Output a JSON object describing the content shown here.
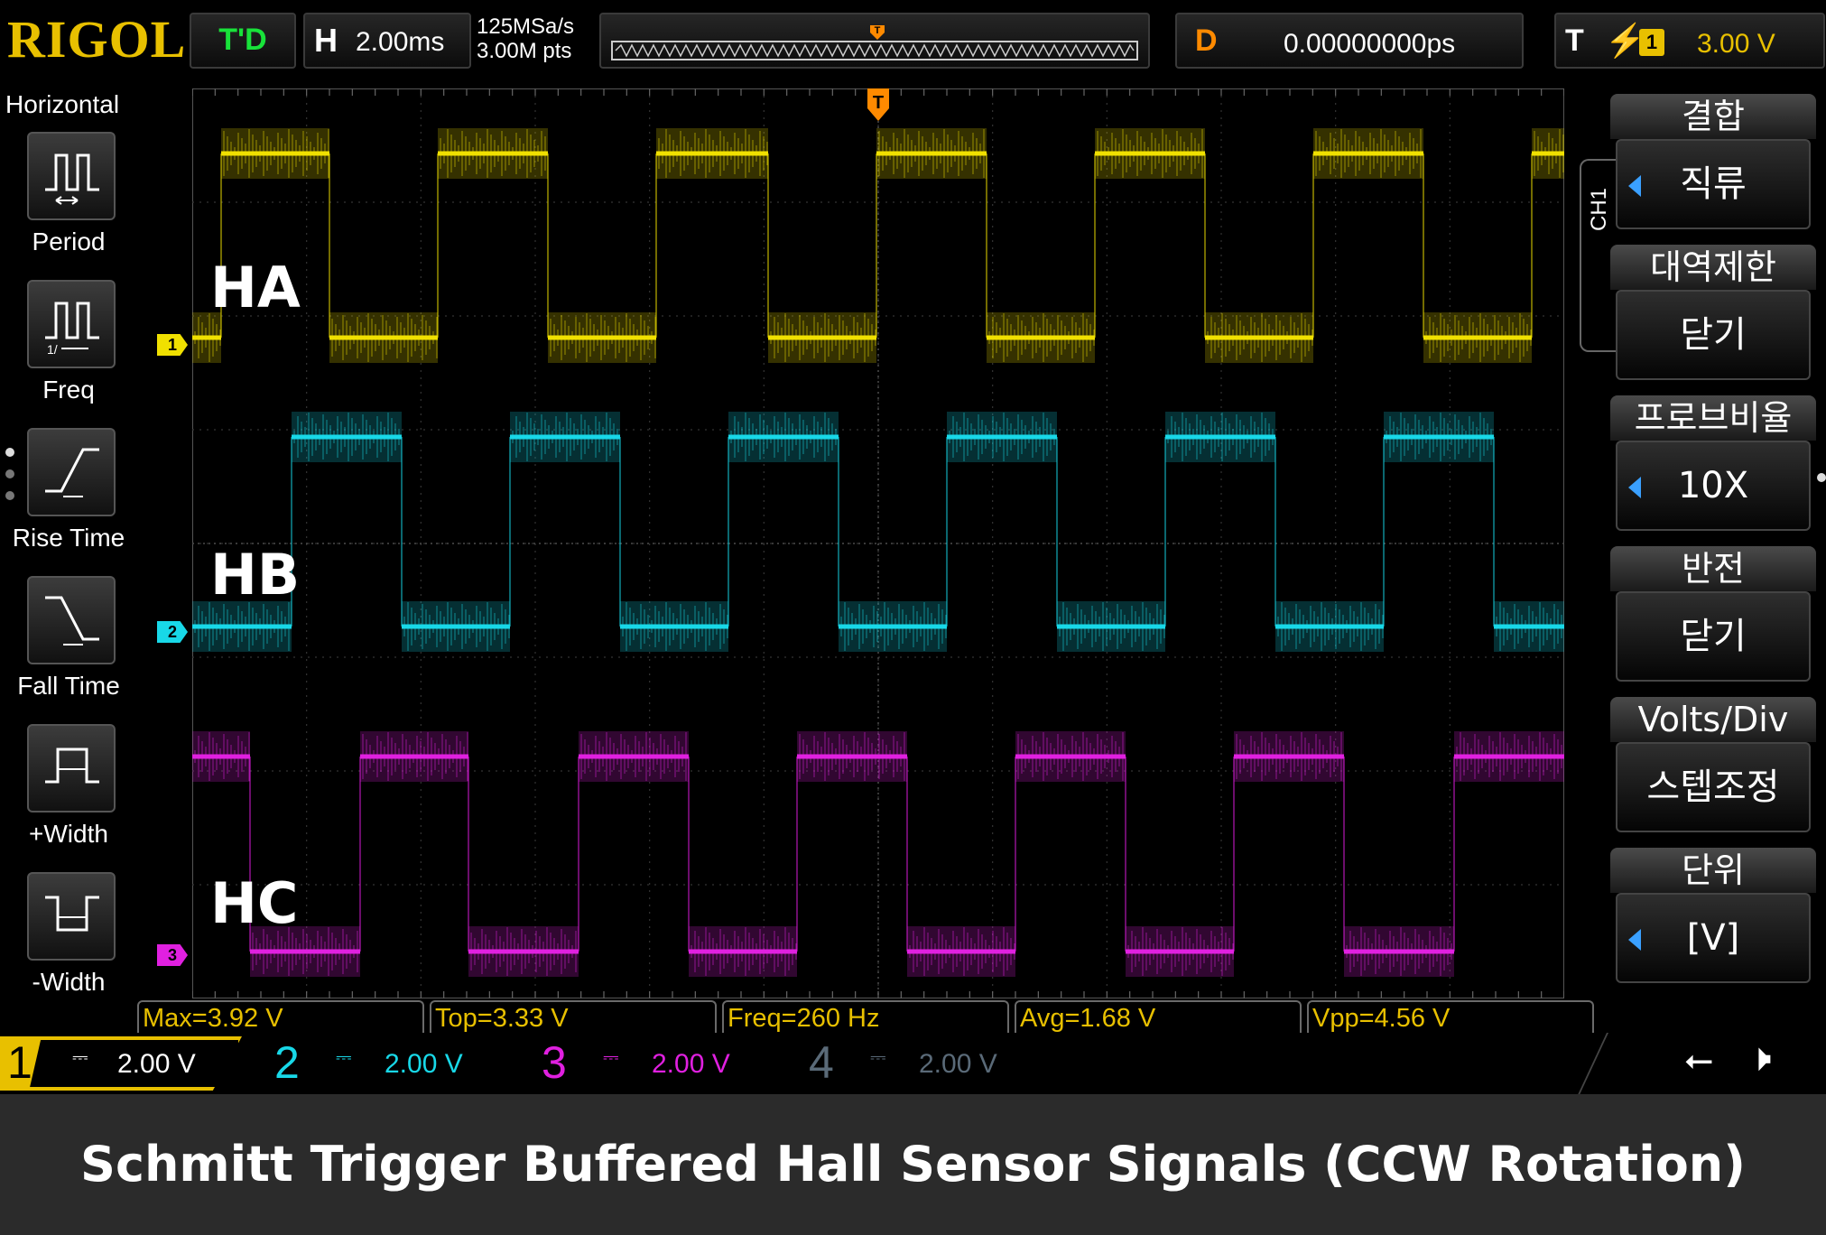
{
  "top": {
    "brand": "RIGOL",
    "run_status": "T'D",
    "horizontal_label": "H",
    "timebase": "2.00ms",
    "sample_rate": "125MSa/s",
    "memory_depth": "3.00M pts",
    "trigger_pos_marker": "T",
    "delay_label": "D",
    "delay_value": "0.00000000ps",
    "trigger_label": "T",
    "trigger_edge": "rising-edge-icon",
    "trigger_source": "1",
    "trigger_level": "3.00 V"
  },
  "left_menu": {
    "title": "Horizontal",
    "items": [
      {
        "label": "Period",
        "icon": "period-icon"
      },
      {
        "label": "Freq",
        "icon": "frequency-icon"
      },
      {
        "label": "Rise Time",
        "icon": "rise-time-icon"
      },
      {
        "label": "Fall Time",
        "icon": "fall-time-icon"
      },
      {
        "label": "+Width",
        "icon": "positive-width-icon"
      },
      {
        "label": "-Width",
        "icon": "negative-width-icon"
      }
    ]
  },
  "waveforms": {
    "labels": [
      "HA",
      "HB",
      "HC"
    ],
    "markers": [
      "1",
      "2",
      "3"
    ],
    "trigger_marker": "T",
    "colors": {
      "ch1": "#f0e000",
      "ch2": "#18d8e8",
      "ch3": "#e020e0",
      "ch4": "#5a6a78"
    }
  },
  "measurements": [
    "Max=3.92 V",
    "Top=3.33 V",
    "Freq=260 Hz",
    "Avg=1.68 V",
    "Vpp=4.56 V"
  ],
  "channels": [
    {
      "num": "1",
      "coupling": "⎓",
      "scale": "2.00 V"
    },
    {
      "num": "2",
      "coupling": "⎓",
      "scale": "2.00 V"
    },
    {
      "num": "3",
      "coupling": "⎓",
      "scale": "2.00 V"
    },
    {
      "num": "4",
      "coupling": "⎓",
      "scale": "2.00 V"
    }
  ],
  "right_menu": {
    "tab": "CH1",
    "items": [
      {
        "header": "결합",
        "value": "직류",
        "has_arrow": true
      },
      {
        "header": "대역제한",
        "value": "닫기",
        "has_arrow": false
      },
      {
        "header": "프로브비율",
        "value": "10X",
        "has_arrow": true
      },
      {
        "header": "반전",
        "value": "닫기",
        "has_arrow": false
      },
      {
        "header": "Volts/Div",
        "value": "스텝조정",
        "has_arrow": false
      },
      {
        "header": "단위",
        "value": "[V]",
        "has_arrow": true
      }
    ]
  },
  "status_icons": {
    "usb": "usb-icon",
    "sound": "mute-icon"
  },
  "caption": "Schmitt Trigger Buffered Hall Sensor Signals (CCW Rotation)"
}
